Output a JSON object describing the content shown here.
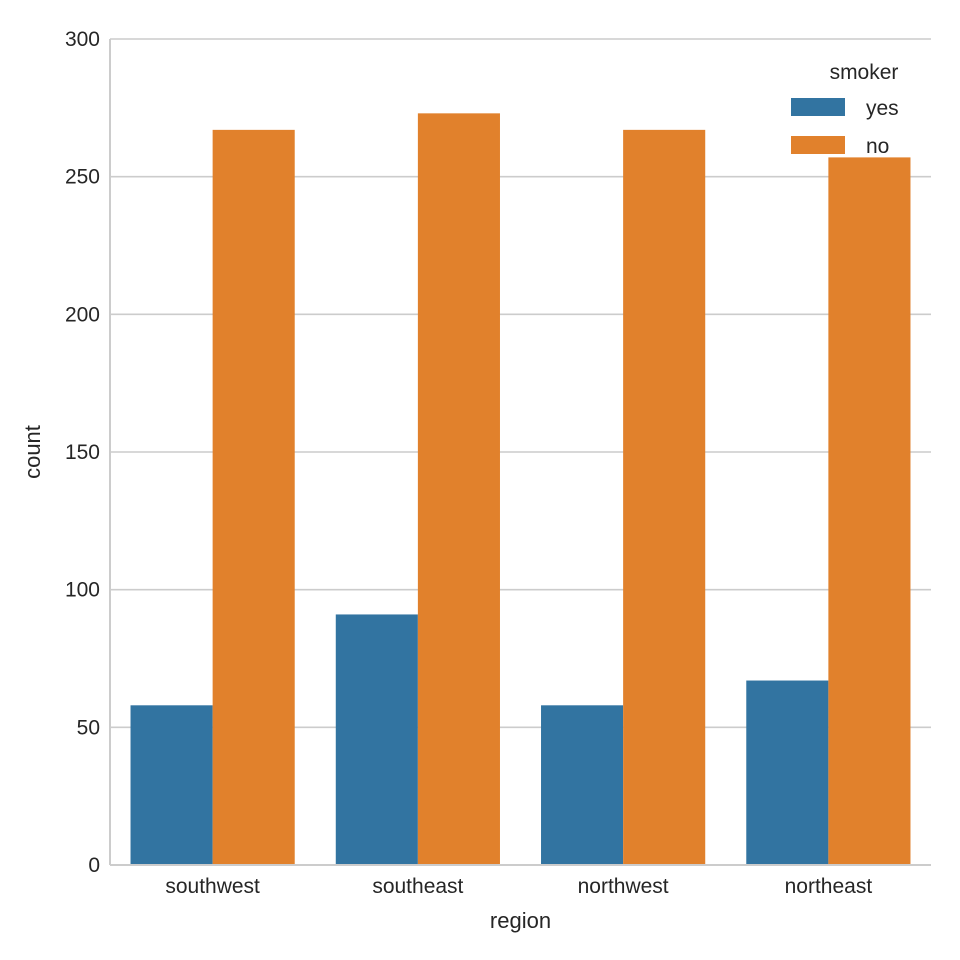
{
  "chart_data": {
    "type": "bar",
    "categories": [
      "southwest",
      "southeast",
      "northwest",
      "northeast"
    ],
    "series": [
      {
        "name": "yes",
        "values": [
          58,
          91,
          58,
          67
        ],
        "color": "#3274a1"
      },
      {
        "name": "no",
        "values": [
          267,
          273,
          267,
          257
        ],
        "color": "#e1812c"
      }
    ],
    "xlabel": "region",
    "ylabel": "count",
    "ylim": [
      0,
      300
    ],
    "yticks": [
      0,
      50,
      100,
      150,
      200,
      250,
      300
    ],
    "grid": "horizontal",
    "legend": {
      "title": "smoker",
      "placement": "top-right"
    }
  }
}
